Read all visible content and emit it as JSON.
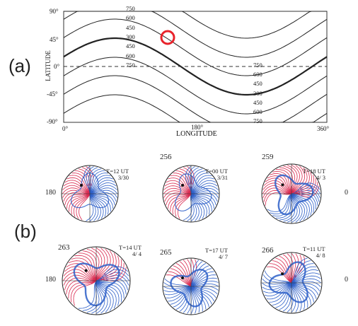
{
  "figure": {
    "panel_a_label": "(a)",
    "panel_b_label": "(b)"
  },
  "panel_a": {
    "y_axis_label": "LATITUDE",
    "x_axis_label": "LONGITUDE",
    "y_ticks": [
      "90°",
      "45°",
      "0°",
      "-45°",
      "-90°"
    ],
    "x_ticks": [
      "0°",
      "180°",
      "360°"
    ],
    "contour_labels_left": [
      "750",
      "600",
      "450",
      "300",
      "450",
      "600",
      "750"
    ],
    "contour_labels_right": [
      "750",
      "600",
      "450",
      "300",
      "450",
      "600",
      "750"
    ],
    "marker_color": "#e8232b"
  },
  "panel_b": {
    "colors": {
      "red": "#d9294f",
      "blue": "#2d5fc8"
    },
    "maps": [
      {
        "number": "",
        "time": "T=12 UT",
        "date": "3/30",
        "left_label": "180",
        "right_label": ""
      },
      {
        "number": "256",
        "time": "T=00 UT",
        "date": "3/31",
        "left_label": "",
        "right_label": ""
      },
      {
        "number": "259",
        "time": "T=18 UT",
        "date": "4/ 3",
        "left_label": "",
        "right_label": "0"
      },
      {
        "number": "263",
        "time": "T=14 UT",
        "date": "4/ 4",
        "left_label": "180",
        "right_label": ""
      },
      {
        "number": "265",
        "time": "T=17 UT",
        "date": "4/ 7",
        "left_label": "",
        "right_label": ""
      },
      {
        "number": "266",
        "time": "T=11 UT",
        "date": "4/ 8",
        "left_label": "",
        "right_label": "0"
      }
    ]
  }
}
